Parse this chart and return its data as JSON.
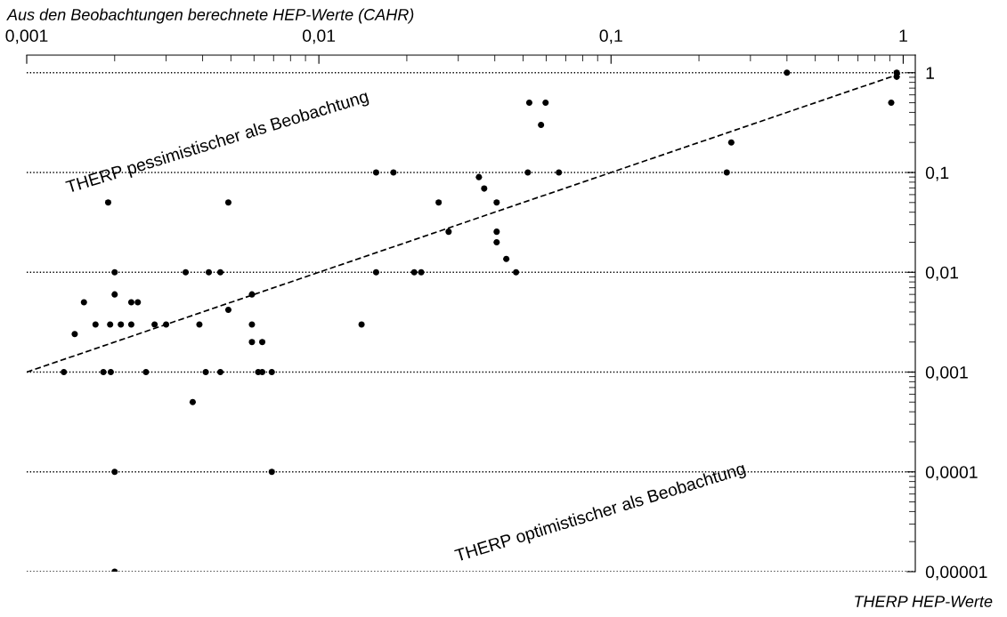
{
  "chart_data": {
    "type": "scatter",
    "xlabel": "Aus den Beobachtungen berechnete HEP-Werte (CAHR)",
    "ylabel": "THERP HEP-Werte",
    "log": "xy",
    "grid": "y",
    "legend": false,
    "xlim": [
      0.001,
      1.1
    ],
    "ylim": [
      1e-05,
      1.5
    ],
    "xticks": [
      {
        "value": 0.001,
        "label": "0,001"
      },
      {
        "value": 0.01,
        "label": "0,01"
      },
      {
        "value": 0.1,
        "label": "0,1"
      },
      1
    ],
    "yticks": [
      1,
      {
        "value": 0.1,
        "label": "0,1"
      },
      {
        "value": 0.01,
        "label": "0,01"
      },
      {
        "value": 0.001,
        "label": "0,001"
      },
      {
        "value": 0.0001,
        "label": "0,0001"
      },
      {
        "value": 1e-05,
        "label": "0,00001"
      }
    ],
    "annotations": [
      "THERP pessimistischer als Beobachtung",
      "THERP optimistischer als Beobachtung"
    ],
    "series": [
      {
        "color": "#000000",
        "marker": "circle",
        "x": [
          0.002,
          0.0035,
          0.0042,
          0.0046,
          0.002,
          0.00157,
          0.00228,
          0.0024,
          0.0059,
          0.0049,
          0.00172,
          0.00193,
          0.0021,
          0.00228,
          0.00274,
          0.003,
          0.0039,
          0.0059,
          0.00146,
          0.0059,
          0.0064,
          0.00134,
          0.00183,
          0.00194,
          0.00256,
          0.0041,
          0.0046,
          0.0062,
          0.0064,
          0.0069,
          0.0037,
          0.002,
          0.002,
          0.0069,
          0.0019,
          0.0049,
          0.0157,
          0.0212,
          0.0224,
          0.0473,
          0.0438,
          0.014,
          0.0525,
          0.0597,
          0.0576,
          0.0157,
          0.018,
          0.0519,
          0.0663,
          0.0353,
          0.0368,
          0.0257,
          0.0406,
          0.0278,
          0.0406,
          0.0406,
          0.4,
          0.95,
          0.95,
          0.91,
          0.258,
          0.249
        ],
        "values": [
          0.01,
          0.01,
          0.01,
          0.01,
          0.006,
          0.005,
          0.005,
          0.005,
          0.006,
          0.0042,
          0.003,
          0.003,
          0.003,
          0.003,
          0.003,
          0.003,
          0.003,
          0.003,
          0.0024,
          0.002,
          0.002,
          0.001,
          0.001,
          0.001,
          0.001,
          0.001,
          0.001,
          0.001,
          0.001,
          0.001,
          0.0005,
          0.0001,
          1e-05,
          0.0001,
          0.05,
          0.05,
          0.01,
          0.01,
          0.01,
          0.01,
          0.0136,
          0.003,
          0.5,
          0.5,
          0.3,
          0.1,
          0.1,
          0.1,
          0.1,
          0.09,
          0.069,
          0.05,
          0.05,
          0.0255,
          0.0255,
          0.02,
          1,
          1,
          0.91,
          0.5,
          0.2,
          0.1
        ]
      },
      {
        "type": "line",
        "color": "#000000",
        "line_style": "dashed",
        "marker": "none",
        "x": [
          0.001,
          1
        ],
        "values": [
          0.001,
          1
        ]
      }
    ]
  }
}
